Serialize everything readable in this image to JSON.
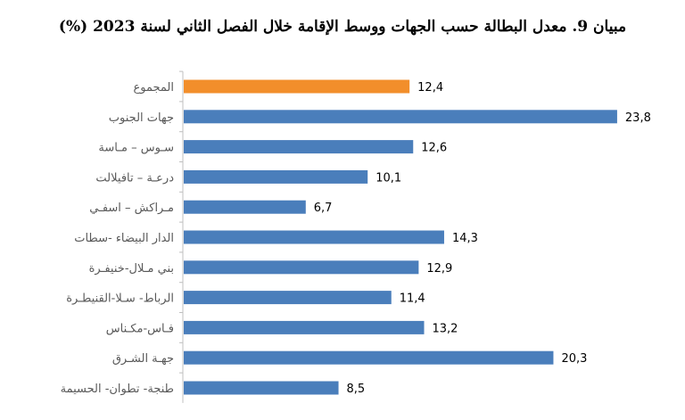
{
  "chart_data": {
    "type": "bar",
    "orientation": "horizontal",
    "title": "مبيان 9. معدل البطالة حسب الجهات ووسط الإقامة خلال الفصل الثاني لسنة 2023 (%)",
    "categories": [
      "المجموع",
      "جهات الجنوب",
      "سـوس – مـاسة",
      "درعـة – تافيلالت",
      "مـراكش – اسفـي",
      "الدار البيضاء -سطات",
      "بني مـلال-خنيفـرة",
      "الرباط- سـلا-القنيطـرة",
      "فـاس-مكـناس",
      "جهـة الشـرق",
      "طنجة- تطوان- الحسيمة"
    ],
    "values": [
      12.4,
      23.8,
      12.6,
      10.1,
      6.7,
      14.3,
      12.9,
      11.4,
      13.2,
      20.3,
      8.5
    ],
    "value_labels": [
      "12,4",
      "23,8",
      "12,6",
      "10,1",
      "6,7",
      "14,3",
      "12,9",
      "11,4",
      "13,2",
      "20,3",
      "8,5"
    ],
    "bar_colors": [
      "#F28E2B",
      "#4A7EBB",
      "#4A7EBB",
      "#4A7EBB",
      "#4A7EBB",
      "#4A7EBB",
      "#4A7EBB",
      "#4A7EBB",
      "#4A7EBB",
      "#4A7EBB",
      "#4A7EBB"
    ],
    "xlim": [
      0,
      24
    ],
    "grid": false,
    "legend": "none"
  }
}
